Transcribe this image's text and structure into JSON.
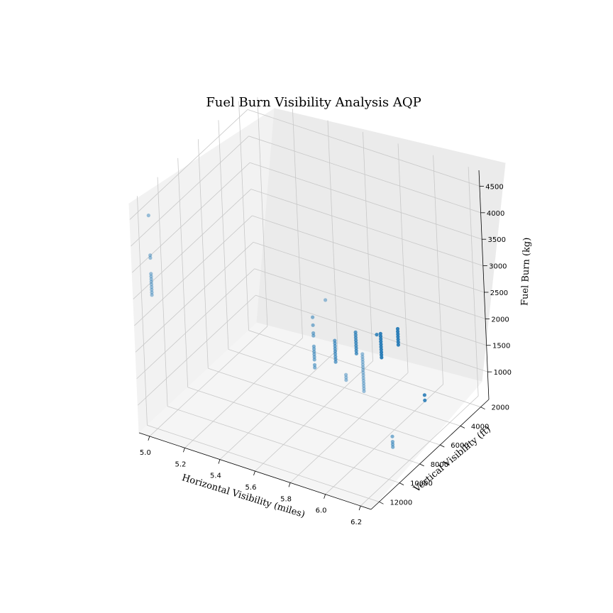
{
  "chart_data": {
    "type": "scatter3d",
    "title": "Fuel Burn Visibility Analysis AQP",
    "xlabel": "Horizontal Visibility (miles)",
    "ylabel": "Vertical Visibility (ft)",
    "zlabel": "Fuel Burn (kg)",
    "xlim": [
      4.94,
      6.26
    ],
    "ylim": [
      1200,
      12800
    ],
    "zlim": [
      480,
      4800
    ],
    "xticks": [
      "5.0",
      "5.2",
      "5.4",
      "5.6",
      "5.8",
      "6.0",
      "6.2"
    ],
    "xtick_values": [
      5.0,
      5.2,
      5.4,
      5.6,
      5.8,
      6.0,
      6.2
    ],
    "yticks": [
      "2000",
      "4000",
      "6000",
      "8000",
      "10000",
      "12000"
    ],
    "ytick_values": [
      2000,
      4000,
      6000,
      8000,
      10000,
      12000
    ],
    "zticks": [
      "1000",
      "1500",
      "2000",
      "2500",
      "3000",
      "3500",
      "4000",
      "4500"
    ],
    "ztick_values": [
      1000,
      1500,
      2000,
      2500,
      3000,
      3500,
      4000,
      4500
    ],
    "grid": true,
    "marker_color": "#1f77b4",
    "series": [
      {
        "points": [
          [
            5.0,
            12000,
            4500
          ],
          [
            5.0,
            12000,
            3750
          ],
          [
            5.0,
            12000,
            3700
          ],
          [
            5.0,
            12000,
            3400
          ],
          [
            5.0,
            12000,
            3350
          ],
          [
            5.0,
            12000,
            3300
          ],
          [
            5.0,
            12000,
            3250
          ],
          [
            5.0,
            12000,
            3200
          ],
          [
            5.0,
            12000,
            3150
          ],
          [
            5.0,
            12000,
            3100
          ],
          [
            5.0,
            12000,
            3050
          ],
          [
            5.0,
            12000,
            3000
          ],
          [
            6.0,
            12000,
            4000
          ],
          [
            6.0,
            3000,
            600
          ],
          [
            6.0,
            3000,
            500
          ],
          [
            6.2,
            12000,
            3200
          ],
          [
            6.2,
            12000,
            3150
          ],
          [
            6.2,
            12000,
            3100
          ],
          [
            6.2,
            12000,
            3050
          ],
          [
            6.2,
            12000,
            3000
          ],
          [
            6.2,
            12000,
            2950
          ],
          [
            6.2,
            12000,
            2900
          ],
          [
            6.2,
            12000,
            2850
          ],
          [
            6.2,
            12000,
            2800
          ],
          [
            6.2,
            12000,
            2750
          ],
          [
            6.2,
            12000,
            2700
          ],
          [
            6.2,
            12000,
            2650
          ],
          [
            6.2,
            12000,
            2600
          ],
          [
            6.2,
            12000,
            2550
          ],
          [
            6.2,
            12000,
            2500
          ],
          [
            6.1,
            12000,
            2700
          ],
          [
            6.1,
            12000,
            2650
          ],
          [
            6.1,
            12000,
            2600
          ],
          [
            6.2,
            9500,
            1200
          ],
          [
            6.2,
            9500,
            1100
          ],
          [
            6.2,
            9500,
            1050
          ],
          [
            6.2,
            9500,
            1000
          ],
          [
            5.8,
            10000,
            3100
          ],
          [
            5.8,
            10000,
            2950
          ],
          [
            5.8,
            10000,
            2800
          ],
          [
            5.8,
            10000,
            2750
          ],
          [
            5.8,
            10000,
            2550
          ],
          [
            5.8,
            10000,
            2500
          ],
          [
            5.8,
            10000,
            2450
          ],
          [
            5.8,
            10000,
            2400
          ],
          [
            5.8,
            10000,
            2350
          ],
          [
            5.8,
            10000,
            2300
          ],
          [
            5.8,
            10000,
            2200
          ],
          [
            5.8,
            10000,
            2150
          ],
          [
            5.8,
            8000,
            2300
          ],
          [
            5.8,
            8000,
            2250
          ],
          [
            5.8,
            8000,
            2200
          ],
          [
            5.8,
            8000,
            2150
          ],
          [
            5.8,
            8000,
            2100
          ],
          [
            5.8,
            8000,
            2050
          ],
          [
            5.8,
            8000,
            2000
          ],
          [
            5.8,
            8000,
            1950
          ],
          [
            5.8,
            8000,
            1900
          ],
          [
            5.8,
            6000,
            2100
          ],
          [
            5.8,
            6000,
            2050
          ],
          [
            5.8,
            6000,
            2000
          ],
          [
            5.8,
            6000,
            1950
          ],
          [
            5.8,
            6000,
            1900
          ],
          [
            5.8,
            6000,
            1850
          ],
          [
            5.8,
            6000,
            1800
          ],
          [
            5.8,
            6000,
            1750
          ],
          [
            5.8,
            6000,
            1700
          ],
          [
            5.8,
            4000,
            1700
          ],
          [
            5.8,
            2000,
            1450
          ],
          [
            5.8,
            2000,
            1400
          ],
          [
            5.8,
            2000,
            1350
          ],
          [
            5.8,
            2000,
            1300
          ],
          [
            5.8,
            2000,
            1250
          ],
          [
            5.8,
            2000,
            1200
          ],
          [
            5.8,
            2000,
            1150
          ],
          [
            5.7,
            2000,
            1250
          ],
          [
            5.7,
            2000,
            1200
          ],
          [
            5.7,
            2000,
            1150
          ],
          [
            5.7,
            2000,
            1100
          ],
          [
            5.7,
            2000,
            1050
          ],
          [
            5.7,
            2000,
            1000
          ],
          [
            5.7,
            2000,
            950
          ],
          [
            5.7,
            2000,
            900
          ],
          [
            5.7,
            2000,
            850
          ],
          [
            5.7,
            2000,
            800
          ]
        ]
      }
    ]
  }
}
